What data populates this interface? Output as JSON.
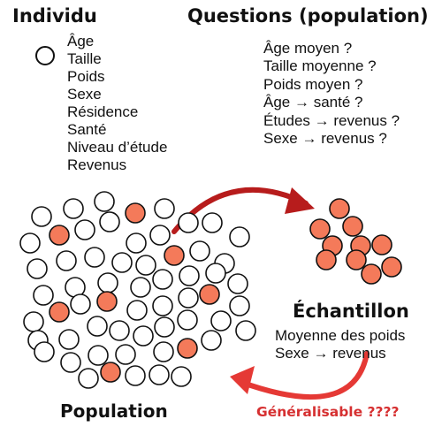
{
  "individu": {
    "title": "Individu",
    "attributes": [
      "Âge",
      "Taille",
      "Poids",
      "Sexe",
      "Résidence",
      "Santé",
      "Niveau d’étude",
      "Revenus"
    ]
  },
  "questions": {
    "title": "Questions (population)",
    "items": [
      "Âge moyen ?",
      "Taille moyenne ?",
      "Poids moyen ?",
      "Âge → santé ?",
      "Études → revenus ?",
      "Sexe → revenus ?"
    ]
  },
  "population": {
    "label": "Population"
  },
  "echantillon": {
    "label": "Échantillon",
    "items": [
      "Moyenne des poids",
      "Sexe → revenus"
    ]
  },
  "generalisable": {
    "label": "Généralisable ????"
  },
  "colors": {
    "selected_fill": "#f47a5a",
    "arrow": "#b71c1c",
    "warning_text": "#d63031",
    "outline": "#111111"
  }
}
